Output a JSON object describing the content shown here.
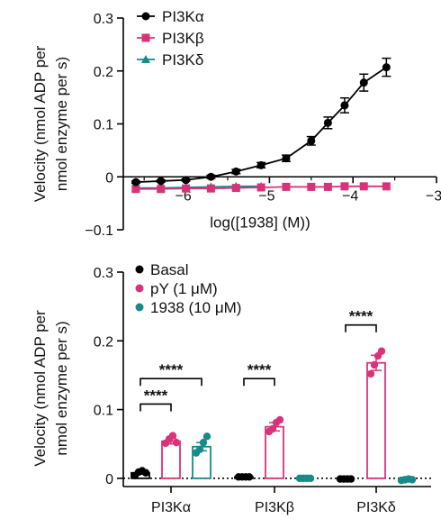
{
  "chart_data": [
    {
      "type": "line",
      "xlabel": "log([1938] (M))",
      "ylabel_lines": [
        "Velocity (nmol ADP per",
        "nmol enzyme per s)"
      ],
      "xlim": [
        -6.75,
        -3
      ],
      "ylim": [
        -0.1,
        0.3
      ],
      "xticks": [
        -6,
        -5,
        -4,
        -3
      ],
      "xtick_labels": [
        "−6",
        "−5",
        "−4",
        "−3"
      ],
      "yticks": [
        -0.1,
        0,
        0.1,
        0.2,
        0.3
      ],
      "ytick_labels": [
        "−0.1",
        "0",
        "0.1",
        "0.2",
        "0.3"
      ],
      "legend_position": "top-left",
      "series": [
        {
          "name": "PI3Kα",
          "color": "#000000",
          "marker": "circle",
          "x": [
            -6.6,
            -6.3,
            -6.0,
            -5.7,
            -5.4,
            -5.1,
            -4.8,
            -4.5,
            -4.3,
            -4.1,
            -3.87,
            -3.6
          ],
          "y": [
            -0.01,
            -0.008,
            -0.006,
            0.0,
            0.01,
            0.022,
            0.035,
            0.068,
            0.102,
            0.135,
            0.178,
            0.207
          ],
          "err": [
            0.002,
            0.002,
            0.002,
            0.003,
            0.004,
            0.005,
            0.006,
            0.008,
            0.011,
            0.014,
            0.016,
            0.017
          ]
        },
        {
          "name": "PI3Kβ",
          "color": "#d8337a",
          "marker": "square",
          "x": [
            -6.6,
            -6.3,
            -6.0,
            -5.7,
            -5.4,
            -5.1,
            -4.8,
            -4.5,
            -4.3,
            -4.1,
            -3.87,
            -3.6
          ],
          "y": [
            -0.023,
            -0.023,
            -0.022,
            -0.022,
            -0.021,
            -0.02,
            -0.019,
            -0.019,
            -0.019,
            -0.018,
            -0.018,
            -0.018
          ],
          "err": [
            0,
            0,
            0,
            0,
            0,
            0,
            0,
            0,
            0,
            0,
            0,
            0
          ]
        },
        {
          "name": "PI3Kδ",
          "color": "#178a8a",
          "marker": "triangle",
          "x": [
            -6.6,
            -6.3,
            -6.0,
            -5.7,
            -5.4,
            -5.1
          ],
          "y": [
            -0.021,
            -0.021,
            -0.02,
            -0.019,
            -0.018,
            -0.018
          ],
          "err": [
            0,
            0,
            0,
            0,
            0,
            0
          ]
        }
      ]
    },
    {
      "type": "bar",
      "ylabel_lines": [
        "Velocity (nmol ADP per",
        "nmol enzyme per s)"
      ],
      "categories": [
        "PI3Kα",
        "PI3Kβ",
        "PI3Kδ"
      ],
      "ylim": [
        -0.012,
        0.3
      ],
      "yticks": [
        0,
        0.1,
        0.2,
        0.3
      ],
      "ytick_labels": [
        "0",
        "0.1",
        "0.2",
        "0.3"
      ],
      "legend_position": "top-left",
      "series": [
        {
          "name": "Basal",
          "color": "#000000",
          "values": [
            0.008,
            0.002,
            -0.001
          ],
          "err": [
            0.002,
            0.001,
            0.001
          ],
          "points": [
            [
              0.004,
              0.009,
              0.011,
              0.008
            ],
            [
              0.002,
              0.002,
              0.002,
              0.002
            ],
            [
              -0.001,
              -0.001,
              -0.001,
              -0.001
            ]
          ]
        },
        {
          "name": "pY (1 μM)",
          "color": "#d8337a",
          "values": [
            0.054,
            0.075,
            0.168
          ],
          "err": [
            0.004,
            0.006,
            0.011
          ],
          "points": [
            [
              0.051,
              0.057,
              0.062,
              0.052
            ],
            [
              0.068,
              0.072,
              0.081,
              0.085
            ],
            [
              0.152,
              0.165,
              0.178,
              0.185
            ]
          ]
        },
        {
          "name": "1938 (10 μM)",
          "color": "#178a8a",
          "values": [
            0.046,
            0.0,
            -0.002
          ],
          "err": [
            0.006,
            0.001,
            0.001
          ],
          "points": [
            [
              0.037,
              0.042,
              0.052,
              0.061
            ],
            [
              0.0,
              0.0,
              0.0,
              0.0
            ],
            [
              -0.003,
              -0.002,
              -0.001,
              -0.002
            ]
          ]
        }
      ],
      "significance": [
        {
          "label": "****",
          "category": 0,
          "from": "Basal",
          "to": "1938 (10 μM)",
          "y": 0.145
        },
        {
          "label": "****",
          "category": 0,
          "from": "Basal",
          "to": "pY (1 μM)",
          "y": 0.108
        },
        {
          "label": "****",
          "category": 1,
          "from": "Basal",
          "to": "pY (1 μM)",
          "y": 0.145
        },
        {
          "label": "****",
          "category": 2,
          "from": "Basal",
          "to": "pY (1 μM)",
          "y": 0.223
        }
      ]
    }
  ]
}
